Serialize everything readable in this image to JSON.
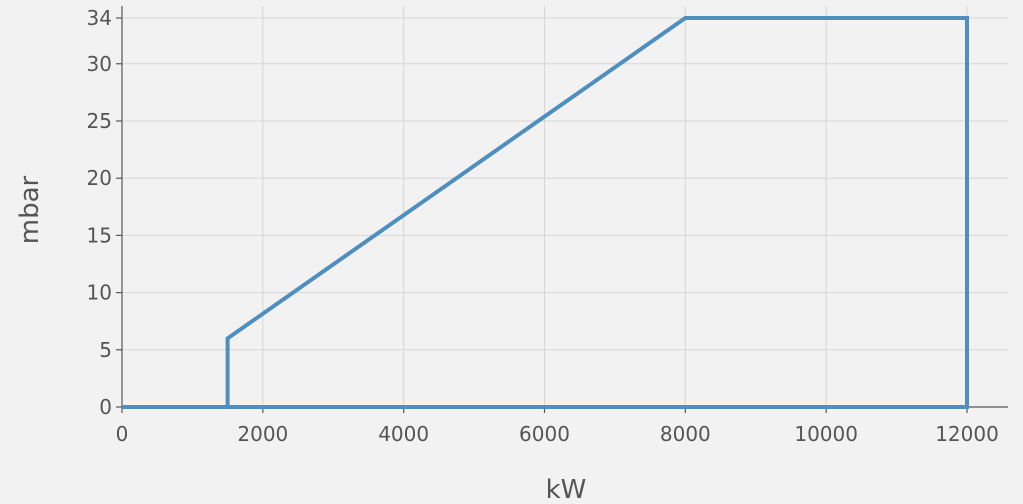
{
  "chart_data": {
    "type": "line",
    "title": "",
    "xlabel": "kW",
    "ylabel": "mbar",
    "xlim": [
      0,
      12200
    ],
    "ylim": [
      0,
      34
    ],
    "xticks": [
      0,
      2000,
      4000,
      6000,
      8000,
      10000,
      12000
    ],
    "yticks": [
      0,
      5,
      10,
      15,
      20,
      25,
      30,
      34
    ],
    "grid": true,
    "series": [
      {
        "points": [
          [
            0,
            0
          ],
          [
            1500,
            0
          ],
          [
            1500,
            6
          ],
          [
            8000,
            34
          ],
          [
            12000,
            34
          ],
          [
            12000,
            0
          ],
          [
            0,
            0
          ]
        ]
      }
    ],
    "colors": {
      "line": "#4f8fc0",
      "background": "#f2f2f2",
      "grid": "#d6d6d6",
      "text": "#555555"
    }
  }
}
